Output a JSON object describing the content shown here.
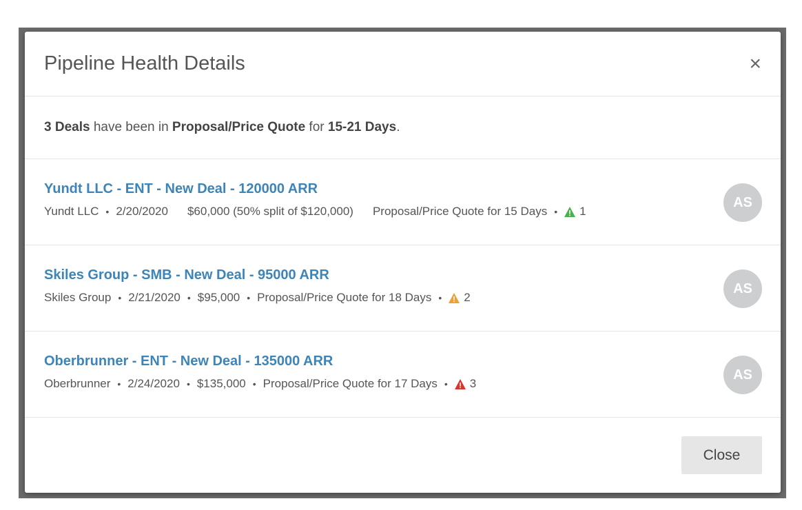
{
  "modal": {
    "title": "Pipeline Health Details",
    "close_icon": "×",
    "summary": {
      "count": "3 Deals",
      "text1": " have been in ",
      "stage": "Proposal/Price Quote",
      "text2": " for ",
      "range": "15-21 Days",
      "text3": "."
    },
    "deals": [
      {
        "name": "Yundt LLC - ENT - New Deal - 120000 ARR",
        "account": "Yundt LLC",
        "date": "2/20/2020",
        "amount": "$60,000 (50% split of $120,000)",
        "stage_text": "Proposal/Price Quote for 15 Days",
        "warning_count": "1",
        "warning_color": "#4caf50",
        "avatar": "AS"
      },
      {
        "name": "Skiles Group - SMB - New Deal - 95000 ARR",
        "account": "Skiles Group",
        "date": "2/21/2020",
        "amount": "$95,000",
        "stage_text": "Proposal/Price Quote for 18 Days",
        "warning_count": "2",
        "warning_color": "#f0a030",
        "avatar": "AS"
      },
      {
        "name": "Oberbrunner - ENT - New Deal - 135000 ARR",
        "account": "Oberbrunner",
        "date": "2/24/2020",
        "amount": "$135,000",
        "stage_text": "Proposal/Price Quote for 17 Days",
        "warning_count": "3",
        "warning_color": "#d9342b",
        "avatar": "AS"
      }
    ],
    "close_button": "Close"
  }
}
